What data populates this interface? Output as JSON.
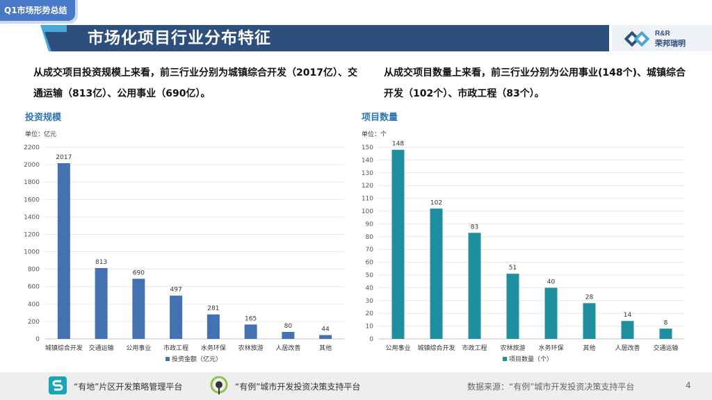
{
  "header": {
    "tag": "Q1市场形势总结",
    "title": "市场化项目行业分布特征",
    "logo_en": "R&R",
    "logo_cn": "荣邦瑞明"
  },
  "summaries": {
    "left": "从成交项目投资规模上来看，前三行业分别为城镇综合开发（2017亿）、交通运输（813亿）、公用事业（690亿）。",
    "right": "从成交项目数量上来看，前三行业分别为公用事业(148个)、城镇综合开发（102个）、市政工程（83个）。"
  },
  "chart_data": [
    {
      "type": "bar",
      "title": "投资规模",
      "unit": "单位：亿元",
      "categories": [
        "城镇综合开发",
        "交通运输",
        "公用事业",
        "市政工程",
        "水务环保",
        "农林旅游",
        "人居改善",
        "其他"
      ],
      "series": [
        {
          "name": "投资金额（亿元）",
          "values": [
            2017,
            813,
            690,
            497,
            281,
            165,
            80,
            44
          ]
        }
      ],
      "ylim": [
        0,
        2200
      ],
      "yticks": [
        0,
        200,
        400,
        600,
        800,
        1000,
        1200,
        1400,
        1600,
        1800,
        2000,
        2200
      ],
      "color": "#4472b0",
      "legend": "bottom"
    },
    {
      "type": "bar",
      "title": "项目数量",
      "unit": "单位：个",
      "categories": [
        "公用事业",
        "城镇综合开发",
        "市政工程",
        "农林旅游",
        "水务环保",
        "其他",
        "人居改善",
        "交通运输"
      ],
      "series": [
        {
          "name": "项目数量（个）",
          "values": [
            148,
            102,
            83,
            51,
            40,
            28,
            14,
            8
          ]
        }
      ],
      "ylim": [
        0,
        150
      ],
      "yticks": [
        0,
        10,
        20,
        30,
        40,
        50,
        60,
        70,
        80,
        90,
        100,
        110,
        120,
        130,
        140,
        150
      ],
      "color": "#1f8fa0",
      "legend": "bottom"
    }
  ],
  "footer": {
    "platform1": "“有地”片区开发策略管理平台",
    "platform2": "“有例”城市开发投资决策支持平台",
    "source": "数据来源：“有例”城市开发投资决策支持平台",
    "page": "4"
  }
}
